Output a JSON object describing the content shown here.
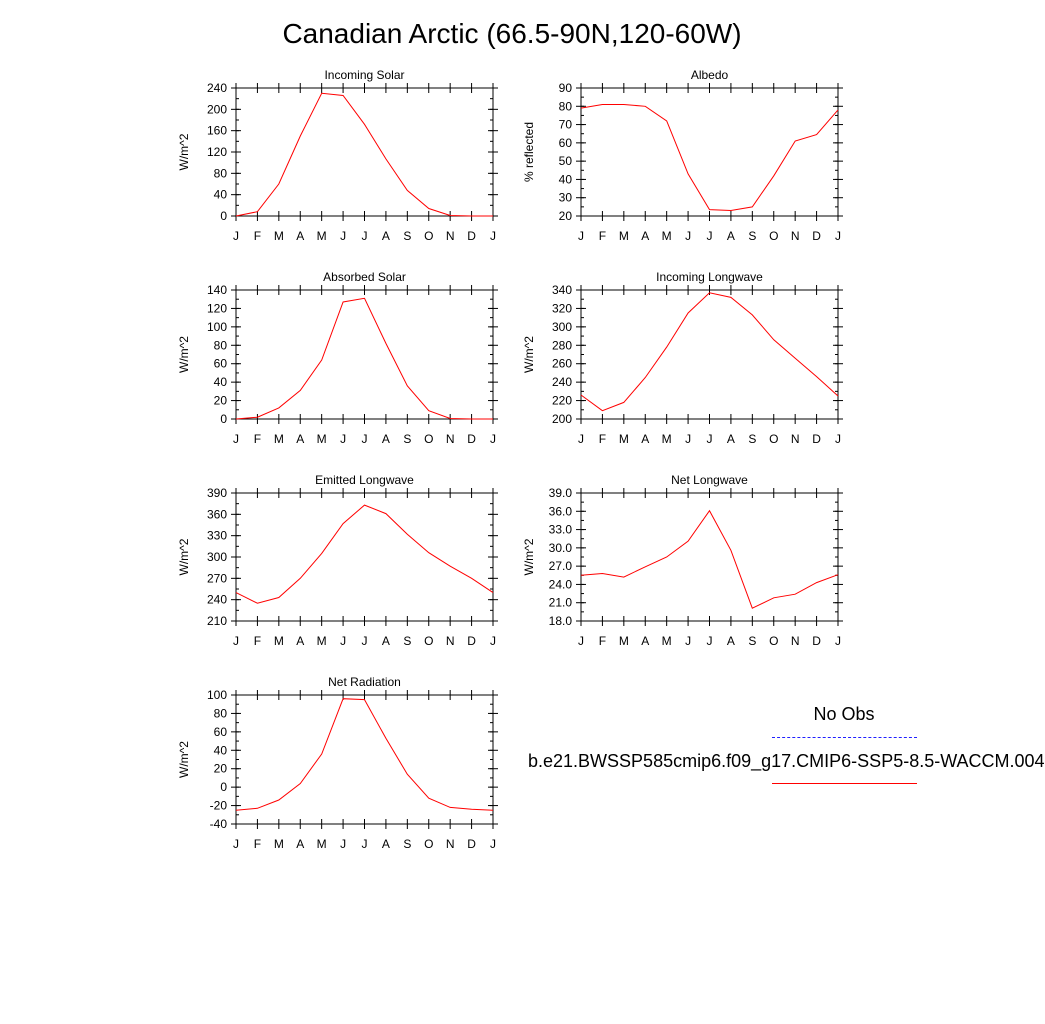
{
  "title": "Canadian Arctic (66.5-90N,120-60W)",
  "months": [
    "J",
    "F",
    "M",
    "A",
    "M",
    "J",
    "J",
    "A",
    "S",
    "O",
    "N",
    "D",
    "J"
  ],
  "legend": {
    "obs_label": "No Obs",
    "obs_color": "#2020ff",
    "case_label": "b.e21.BWSSP585cmip6.f09_g17.CMIP6-SSP5-8.5-WACCM.004",
    "case_color": "#ff0000"
  },
  "chart_data": [
    {
      "type": "line",
      "title": "Incoming Solar",
      "ylabel": "W/m^2",
      "ylim": [
        0,
        240
      ],
      "yticks": [
        0,
        40,
        80,
        120,
        160,
        200,
        240
      ],
      "yminor": 20,
      "ytick_labels": [
        "0",
        "40",
        "80",
        "120",
        "160",
        "200",
        "240"
      ],
      "x": [
        "J",
        "F",
        "M",
        "A",
        "M",
        "J",
        "J",
        "A",
        "S",
        "O",
        "N",
        "D",
        "J"
      ],
      "values": [
        0,
        8,
        60,
        150,
        230,
        226,
        172,
        107,
        48,
        14,
        1,
        0,
        0
      ]
    },
    {
      "type": "line",
      "title": "Albedo",
      "ylabel": "% reflected",
      "ylim": [
        20,
        90
      ],
      "yticks": [
        20,
        30,
        40,
        50,
        60,
        70,
        80,
        90
      ],
      "yminor": 5,
      "ytick_labels": [
        "20",
        "30",
        "40",
        "50",
        "60",
        "70",
        "80",
        "90"
      ],
      "x": [
        "J",
        "F",
        "M",
        "A",
        "M",
        "J",
        "J",
        "A",
        "S",
        "O",
        "N",
        "D",
        "J"
      ],
      "values": [
        79,
        81,
        81,
        80,
        72,
        43,
        23.5,
        23,
        25,
        42,
        61,
        64.5,
        78
      ]
    },
    {
      "type": "line",
      "title": "Absorbed Solar",
      "ylabel": "W/m^2",
      "ylim": [
        0,
        140
      ],
      "yticks": [
        0,
        20,
        40,
        60,
        80,
        100,
        120,
        140
      ],
      "yminor": 10,
      "ytick_labels": [
        "0",
        "20",
        "40",
        "60",
        "80",
        "100",
        "120",
        "140"
      ],
      "x": [
        "J",
        "F",
        "M",
        "A",
        "M",
        "J",
        "J",
        "A",
        "S",
        "O",
        "N",
        "D",
        "J"
      ],
      "values": [
        0,
        2,
        12,
        31,
        64,
        127,
        131,
        82,
        36,
        9,
        0.5,
        0,
        0
      ]
    },
    {
      "type": "line",
      "title": "Incoming Longwave",
      "ylabel": "W/m^2",
      "ylim": [
        200,
        340
      ],
      "yticks": [
        200,
        220,
        240,
        260,
        280,
        300,
        320,
        340
      ],
      "yminor": 10,
      "ytick_labels": [
        "200",
        "220",
        "240",
        "260",
        "280",
        "300",
        "320",
        "340"
      ],
      "x": [
        "J",
        "F",
        "M",
        "A",
        "M",
        "J",
        "J",
        "A",
        "S",
        "O",
        "N",
        "D",
        "J"
      ],
      "values": [
        226,
        209,
        218,
        245,
        278,
        315,
        337,
        332,
        313,
        286,
        266,
        246,
        225
      ]
    },
    {
      "type": "line",
      "title": "Emitted Longwave",
      "ylabel": "W/m^2",
      "ylim": [
        210,
        390
      ],
      "yticks": [
        210,
        240,
        270,
        300,
        330,
        360,
        390
      ],
      "yminor": 15,
      "ytick_labels": [
        "210",
        "240",
        "270",
        "300",
        "330",
        "360",
        "390"
      ],
      "x": [
        "J",
        "F",
        "M",
        "A",
        "M",
        "J",
        "J",
        "A",
        "S",
        "O",
        "N",
        "D",
        "J"
      ],
      "values": [
        250,
        235,
        243,
        270,
        305,
        347,
        373,
        361,
        332,
        306,
        287,
        270,
        250
      ]
    },
    {
      "type": "line",
      "title": "Net Longwave",
      "ylabel": "W/m^2",
      "ylim": [
        18,
        39
      ],
      "yticks": [
        18,
        21,
        24,
        27,
        30,
        33,
        36,
        39
      ],
      "yminor": 1.5,
      "ytick_labels": [
        "18.0",
        "21.0",
        "24.0",
        "27.0",
        "30.0",
        "33.0",
        "36.0",
        "39.0"
      ],
      "x": [
        "J",
        "F",
        "M",
        "A",
        "M",
        "J",
        "J",
        "A",
        "S",
        "O",
        "N",
        "D",
        "J"
      ],
      "values": [
        25.5,
        25.8,
        25.2,
        26.9,
        28.5,
        31.1,
        36.1,
        29.6,
        20.1,
        21.8,
        22.4,
        24.3,
        25.6
      ]
    },
    {
      "type": "line",
      "title": "Net Radiation",
      "ylabel": "W/m^2",
      "ylim": [
        -40,
        100
      ],
      "yticks": [
        -40,
        -20,
        0,
        20,
        40,
        60,
        80,
        100
      ],
      "yminor": 10,
      "ytick_labels": [
        "-40",
        "-20",
        "0",
        "20",
        "40",
        "60",
        "80",
        "100"
      ],
      "x": [
        "J",
        "F",
        "M",
        "A",
        "M",
        "J",
        "J",
        "A",
        "S",
        "O",
        "N",
        "D",
        "J"
      ],
      "values": [
        -25,
        -23,
        -14,
        4,
        36,
        96,
        95,
        53,
        14,
        -12,
        -22,
        -24,
        -25
      ]
    }
  ]
}
